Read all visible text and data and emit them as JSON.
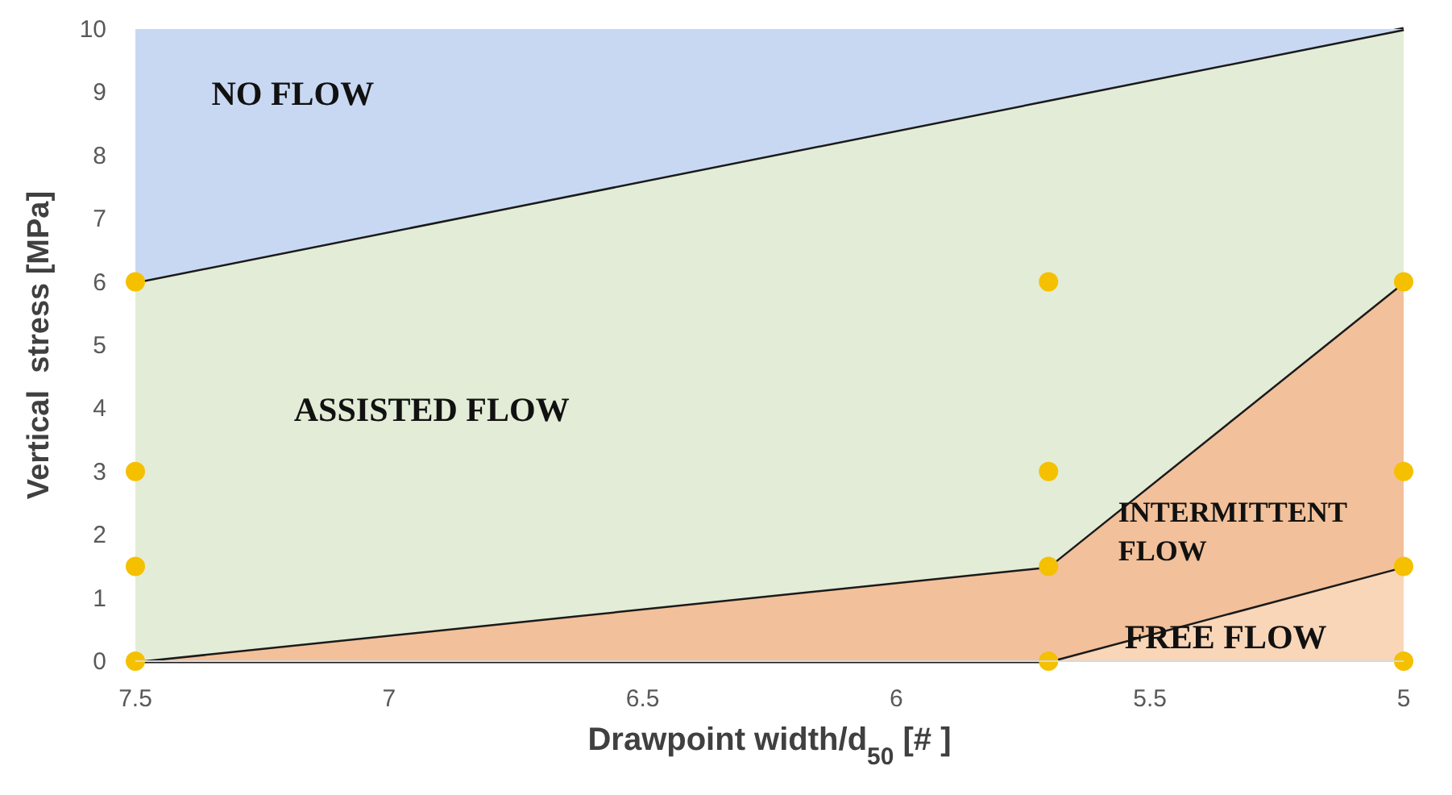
{
  "chart_data": {
    "type": "area",
    "stacked": true,
    "xlabel": "Drawpoint width/d$_{50}$ [# ]",
    "ylabel": "Vertical  stress [MPa]",
    "xlim": [
      7.5,
      5
    ],
    "xticks": [
      7.5,
      7,
      6.5,
      6,
      5.5,
      5
    ],
    "ylim": [
      0,
      10
    ],
    "yticks": [
      0,
      1,
      2,
      3,
      4,
      5,
      6,
      7,
      8,
      9,
      10
    ],
    "grid": false,
    "x": [
      7.5,
      5.7,
      5
    ],
    "series": [
      {
        "color": "#f9d6b8",
        "values": [
          0,
          0,
          1.5
        ],
        "line_style": "solid"
      },
      {
        "color": "#f2c09a",
        "values": [
          0,
          1.5,
          4.5
        ],
        "line_style": "solid"
      },
      {
        "color": "#e3ecd6",
        "values": [
          6,
          7.38,
          4
        ],
        "line_style": "solid"
      },
      {
        "color": "#c9d8f2",
        "values": [
          4,
          1.12,
          0
        ]
      },
      {
        "type": "scatter",
        "color": "#f5c000",
        "marker": "circle",
        "x": [
          7.5,
          7.5,
          7.5,
          7.5,
          5.7,
          5.7,
          5.7,
          5.7,
          5,
          5,
          5,
          5
        ],
        "values": [
          0,
          1.5,
          3,
          6,
          0,
          1.5,
          3,
          6,
          0,
          1.5,
          3,
          6
        ]
      }
    ],
    "annotations": [
      "NO FLOW",
      "ASSISTED FLOW",
      "INTERMITTENT\nFLOW",
      "FREE FLOW"
    ]
  }
}
